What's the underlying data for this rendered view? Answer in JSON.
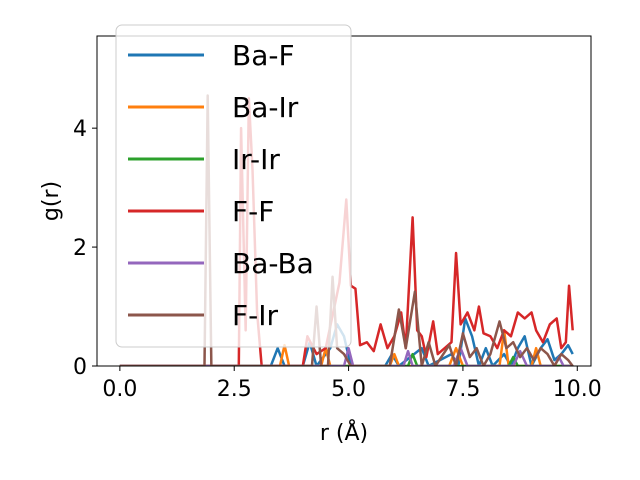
{
  "chart_data": {
    "type": "line",
    "xlabel": "r (Å)",
    "ylabel": "g(r)",
    "xlim": [
      -0.5,
      10.3
    ],
    "ylim": [
      0,
      5.55
    ],
    "xticks": [
      0.0,
      2.5,
      5.0,
      7.5,
      10.0
    ],
    "xtick_labels": [
      "0.0",
      "2.5",
      "5.0",
      "7.5",
      "10.0"
    ],
    "yticks": [
      0,
      2,
      4
    ],
    "ytick_labels": [
      "0",
      "2",
      "4"
    ],
    "grid": false,
    "legend_position": "upper-left",
    "series": [
      {
        "name": "Ba-F",
        "color": "#1f77b4",
        "points": [
          [
            0,
            0
          ],
          [
            3.3,
            0
          ],
          [
            3.45,
            0.3
          ],
          [
            3.6,
            0
          ],
          [
            4.0,
            0
          ],
          [
            4.15,
            0.4
          ],
          [
            4.3,
            0
          ],
          [
            4.6,
            0.3
          ],
          [
            4.75,
            0.7
          ],
          [
            4.9,
            0.5
          ],
          [
            5.05,
            0
          ],
          [
            5.8,
            0
          ],
          [
            5.95,
            0.2
          ],
          [
            6.1,
            0
          ],
          [
            6.6,
            0.3
          ],
          [
            6.75,
            0
          ],
          [
            7.25,
            0.2
          ],
          [
            7.4,
            0
          ],
          [
            7.55,
            0.8
          ],
          [
            7.7,
            0.5
          ],
          [
            7.85,
            0
          ],
          [
            8.0,
            0.3
          ],
          [
            8.15,
            0
          ],
          [
            8.4,
            0.2
          ],
          [
            8.55,
            0
          ],
          [
            8.7,
            0.3
          ],
          [
            8.85,
            0.5
          ],
          [
            9.0,
            0
          ],
          [
            9.2,
            0.3
          ],
          [
            9.35,
            0.45
          ],
          [
            9.5,
            0.1
          ],
          [
            9.65,
            0.2
          ],
          [
            9.8,
            0.35
          ],
          [
            9.9,
            0.2
          ]
        ]
      },
      {
        "name": "Ba-Ir",
        "color": "#ff7f0e",
        "points": [
          [
            0,
            0
          ],
          [
            3.5,
            0
          ],
          [
            3.6,
            0.35
          ],
          [
            3.7,
            0
          ],
          [
            4.4,
            0
          ],
          [
            4.5,
            0.3
          ],
          [
            4.6,
            0
          ],
          [
            5.9,
            0
          ],
          [
            6.0,
            0.2
          ],
          [
            6.1,
            0
          ],
          [
            7.2,
            0
          ],
          [
            7.35,
            0.3
          ],
          [
            7.5,
            0
          ],
          [
            8.3,
            0
          ],
          [
            8.4,
            0.6
          ],
          [
            8.5,
            0
          ],
          [
            9.0,
            0
          ],
          [
            9.1,
            0.3
          ],
          [
            9.2,
            0
          ],
          [
            9.9,
            0
          ]
        ]
      },
      {
        "name": "Ir-Ir",
        "color": "#2ca02c",
        "points": [
          [
            0,
            0
          ],
          [
            6.3,
            0
          ],
          [
            6.4,
            0.2
          ],
          [
            6.5,
            0
          ],
          [
            8.5,
            0
          ],
          [
            8.6,
            0.15
          ],
          [
            8.7,
            0
          ],
          [
            9.9,
            0
          ]
        ]
      },
      {
        "name": "F-F",
        "color": "#d62728",
        "points": [
          [
            0,
            0
          ],
          [
            2.6,
            0
          ],
          [
            2.65,
            4.0
          ],
          [
            2.75,
            0.6
          ],
          [
            2.82,
            4.5
          ],
          [
            2.9,
            3.3
          ],
          [
            3.0,
            0.9
          ],
          [
            3.1,
            0
          ],
          [
            4.0,
            0
          ],
          [
            4.1,
            0.5
          ],
          [
            4.3,
            0.2
          ],
          [
            4.5,
            0.3
          ],
          [
            4.8,
            1.4
          ],
          [
            4.95,
            2.8
          ],
          [
            5.05,
            1.35
          ],
          [
            5.15,
            1.3
          ],
          [
            5.25,
            0.35
          ],
          [
            5.4,
            0.4
          ],
          [
            5.55,
            0.25
          ],
          [
            5.7,
            0.7
          ],
          [
            5.85,
            0.3
          ],
          [
            6.0,
            0.5
          ],
          [
            6.15,
            0.9
          ],
          [
            6.25,
            0.3
          ],
          [
            6.4,
            2.5
          ],
          [
            6.5,
            0.6
          ],
          [
            6.6,
            0.5
          ],
          [
            6.7,
            0.15
          ],
          [
            6.85,
            0.75
          ],
          [
            6.95,
            0.2
          ],
          [
            7.1,
            0.3
          ],
          [
            7.25,
            0.4
          ],
          [
            7.35,
            1.9
          ],
          [
            7.45,
            0.7
          ],
          [
            7.6,
            0.9
          ],
          [
            7.75,
            0.6
          ],
          [
            7.85,
            1.0
          ],
          [
            7.95,
            0.55
          ],
          [
            8.1,
            0.5
          ],
          [
            8.25,
            0.3
          ],
          [
            8.4,
            0.6
          ],
          [
            8.55,
            0.5
          ],
          [
            8.7,
            0.9
          ],
          [
            8.85,
            0.8
          ],
          [
            9.0,
            0.9
          ],
          [
            9.1,
            0.6
          ],
          [
            9.25,
            0.4
          ],
          [
            9.4,
            0.7
          ],
          [
            9.55,
            0.8
          ],
          [
            9.65,
            0.3
          ],
          [
            9.75,
            0.4
          ],
          [
            9.82,
            1.35
          ],
          [
            9.9,
            0.6
          ]
        ]
      },
      {
        "name": "Ba-Ba",
        "color": "#9467bd",
        "points": [
          [
            0,
            0
          ],
          [
            4.9,
            0
          ],
          [
            5.0,
            0.3
          ],
          [
            5.1,
            0
          ],
          [
            6.2,
            0
          ],
          [
            6.3,
            0.25
          ],
          [
            6.4,
            0
          ],
          [
            7.3,
            0
          ],
          [
            7.45,
            0.3
          ],
          [
            7.6,
            0
          ],
          [
            8.6,
            0
          ],
          [
            8.75,
            0.25
          ],
          [
            8.9,
            0
          ],
          [
            9.5,
            0
          ],
          [
            9.6,
            0.15
          ],
          [
            9.7,
            0
          ],
          [
            9.9,
            0
          ]
        ]
      },
      {
        "name": "F-Ir",
        "color": "#8c564b",
        "points": [
          [
            0,
            0
          ],
          [
            1.85,
            0
          ],
          [
            1.92,
            4.55
          ],
          [
            2.0,
            0
          ],
          [
            4.2,
            0
          ],
          [
            4.3,
            1.0
          ],
          [
            4.4,
            0
          ],
          [
            4.55,
            0
          ],
          [
            4.65,
            1.5
          ],
          [
            4.75,
            0.3
          ],
          [
            4.9,
            0.2
          ],
          [
            5.05,
            0
          ],
          [
            5.9,
            0
          ],
          [
            6.1,
            0.95
          ],
          [
            6.25,
            0.3
          ],
          [
            6.45,
            1.25
          ],
          [
            6.6,
            0
          ],
          [
            6.75,
            0.4
          ],
          [
            6.9,
            0
          ],
          [
            7.2,
            0.35
          ],
          [
            7.35,
            0
          ],
          [
            7.5,
            0.55
          ],
          [
            7.65,
            0.15
          ],
          [
            7.8,
            0.3
          ],
          [
            7.95,
            0
          ],
          [
            8.1,
            0.2
          ],
          [
            8.3,
            0.75
          ],
          [
            8.45,
            0.3
          ],
          [
            8.6,
            0.4
          ],
          [
            8.75,
            0.15
          ],
          [
            8.9,
            0.3
          ],
          [
            9.05,
            0.1
          ],
          [
            9.2,
            0.3
          ],
          [
            9.35,
            0.2
          ],
          [
            9.5,
            0
          ],
          [
            9.65,
            0.2
          ],
          [
            9.8,
            0.1
          ],
          [
            9.9,
            0
          ]
        ]
      }
    ]
  }
}
